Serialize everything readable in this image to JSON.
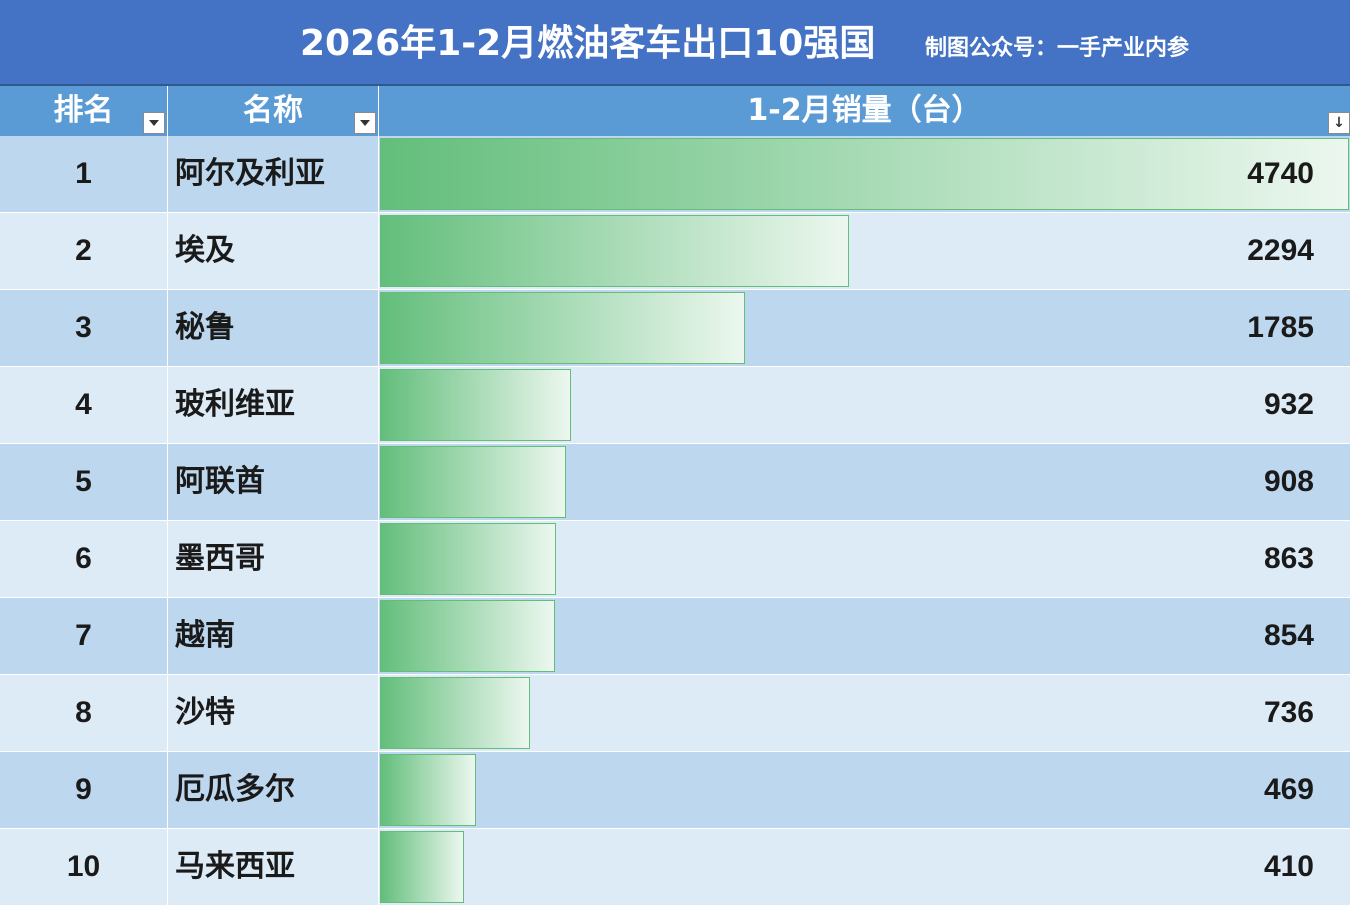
{
  "title": {
    "main": "2026年1-2月燃油客车出口10强国",
    "sub": "制图公众号：一手产业内参"
  },
  "headers": {
    "rank": "排名",
    "name": "名称",
    "sales": "1-2月销量（台）"
  },
  "icons": {
    "filter": "filter-dropdown-icon",
    "sort": "sort-descending-filter-icon"
  },
  "colors": {
    "title_bg": "#4472c4",
    "header_bg": "#5b9bd5",
    "row_odd": "#bdd7ee",
    "row_even": "#ddebf7",
    "bar_start": "#63be7b",
    "bar_end": "#ecf7ef"
  },
  "chart_data": {
    "type": "bar",
    "orientation": "horizontal",
    "style": "excel data-bar table",
    "xlim": [
      0,
      4740
    ],
    "rows": [
      {
        "rank": "1",
        "name": "阿尔及利亚",
        "value": 4740
      },
      {
        "rank": "2",
        "name": "埃及",
        "value": 2294
      },
      {
        "rank": "3",
        "name": "秘鲁",
        "value": 1785
      },
      {
        "rank": "4",
        "name": "玻利维亚",
        "value": 932
      },
      {
        "rank": "5",
        "name": "阿联酋",
        "value": 908
      },
      {
        "rank": "6",
        "name": "墨西哥",
        "value": 863
      },
      {
        "rank": "7",
        "name": "越南",
        "value": 854
      },
      {
        "rank": "8",
        "name": "沙特",
        "value": 736
      },
      {
        "rank": "9",
        "name": "厄瓜多尔",
        "value": 469
      },
      {
        "rank": "10",
        "name": "马来西亚",
        "value": 410
      }
    ]
  }
}
